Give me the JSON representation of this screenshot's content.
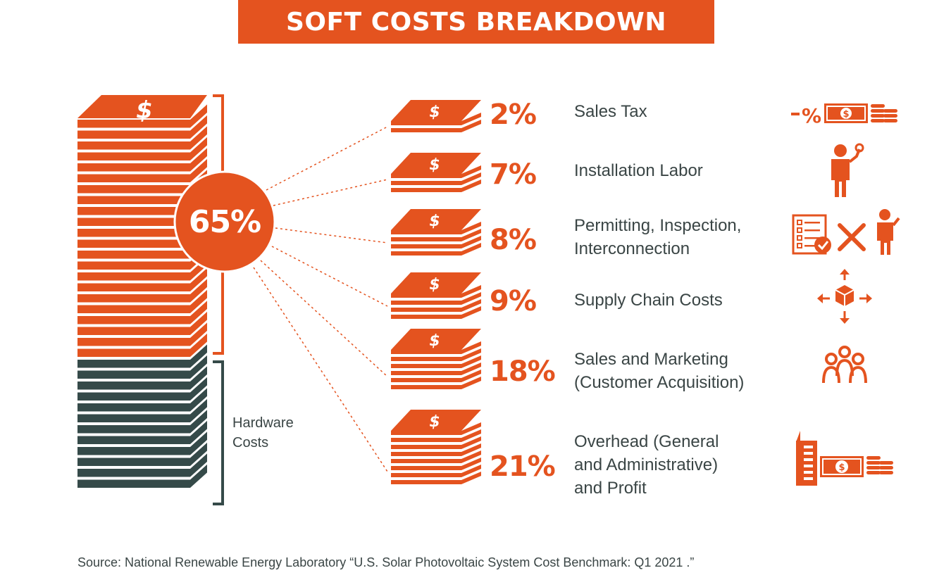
{
  "title": "SOFT COSTS BREAKDOWN",
  "colors": {
    "soft": "#e4531f",
    "hardware": "#354a49",
    "text": "#3a4545",
    "bg": "#ffffff"
  },
  "main": {
    "soft_share_label": "65%",
    "hardware_label_line1": "Hardware",
    "hardware_label_line2": "Costs",
    "dollar_glyph": "$"
  },
  "chart_data": {
    "type": "bar",
    "title": "SOFT COSTS BREAKDOWN",
    "total_soft_cost_share": 65,
    "stack": {
      "soft_layers": 22,
      "hardware_layers": 12
    },
    "categories": [
      "Sales Tax",
      "Installation Labor",
      "Permitting, Inspection, Interconnection",
      "Supply Chain Costs",
      "Sales and Marketing (Customer Acquisition)",
      "Overhead (General and Administrative) and Profit"
    ],
    "values": [
      2,
      7,
      8,
      9,
      18,
      21
    ],
    "items": [
      {
        "pct": "2%",
        "value": 2,
        "lines": [
          "Sales Tax"
        ],
        "icon": "sales-tax-icon"
      },
      {
        "pct": "7%",
        "value": 7,
        "lines": [
          "Installation Labor"
        ],
        "icon": "worker-icon"
      },
      {
        "pct": "8%",
        "value": 8,
        "lines": [
          "Permitting, Inspection,",
          "Interconnection"
        ],
        "icon": "permit-checklist-icon"
      },
      {
        "pct": "9%",
        "value": 9,
        "lines": [
          "Supply Chain Costs"
        ],
        "icon": "supply-chain-box-icon"
      },
      {
        "pct": "18%",
        "value": 18,
        "lines": [
          "Sales and Marketing",
          "(Customer Acquisition)"
        ],
        "icon": "customers-group-icon"
      },
      {
        "pct": "21%",
        "value": 21,
        "lines": [
          "Overhead (General",
          "and Administrative)",
          "and Profit"
        ],
        "icon": "building-money-icon"
      }
    ],
    "source": "Source: National Renewable Energy Laboratory “U.S. Solar Photovoltaic System Cost Benchmark: Q1 2021 .”"
  }
}
